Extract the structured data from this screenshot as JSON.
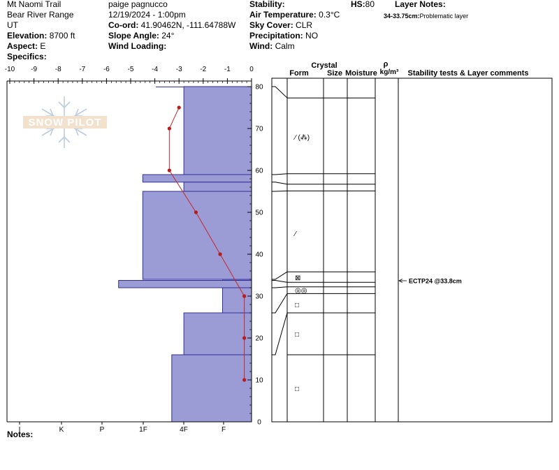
{
  "header": {
    "col1": {
      "location": "Mt Naomi Trail",
      "range": "Bear River Range",
      "state": "UT",
      "elevation_label": "Elevation:",
      "elevation_value": "8700 ft",
      "aspect_label": "Aspect:",
      "aspect_value": "E",
      "specifics_label": "Specifics:"
    },
    "col2": {
      "observer": "paige pagnucco",
      "datetime": "12/19/2024 - 1:00pm",
      "coord_label": "Co-ord:",
      "coord_value": "41.90462N, -111.64788W",
      "slope_label": "Slope Angle:",
      "slope_value": "24°",
      "wind_loading_label": "Wind Loading:"
    },
    "col3": {
      "stability_label": "Stability:",
      "air_temp_label": "Air Temperature:",
      "air_temp_value": "0.3°C",
      "sky_label": "Sky Cover:",
      "sky_value": "CLR",
      "precip_label": "Precipitation:",
      "precip_value": "NO",
      "wind_label": "Wind:",
      "wind_value": "Calm"
    },
    "hs_label": "HS:",
    "hs_value": "80",
    "layer_notes_label": "Layer Notes:",
    "layer_note_range": "34-33.75cm:",
    "layer_note_text": "Problematic layer"
  },
  "watermark": "SNOW PILOT",
  "notes_label": "Notes:",
  "grid_headers": {
    "crystal": "Crystal",
    "form": "Form",
    "size": "Size",
    "moisture": "Moisture",
    "rho": "ρ",
    "density_unit": "kg/m³",
    "stability": "Stability tests & Layer comments"
  },
  "test_result": "ECTP24 @33.8cm",
  "grain_symbols": [
    {
      "height": 68,
      "symbol": "⁄ (⁂)"
    },
    {
      "height": 45,
      "symbol": "⁄"
    },
    {
      "height": 34.5,
      "symbol": "⊠"
    },
    {
      "height": 31.5,
      "symbol": "◎◎"
    },
    {
      "height": 28,
      "symbol": "□"
    },
    {
      "height": 21,
      "symbol": "□"
    },
    {
      "height": 8,
      "symbol": "□"
    }
  ],
  "chart_data": {
    "type": "snow_profile",
    "temperature_axis": {
      "ticks": [
        "-10",
        "-9",
        "-8",
        "-7",
        "-6",
        "-5",
        "-4",
        "-3",
        "-2",
        "-1",
        "0"
      ],
      "range": [
        -10,
        0
      ]
    },
    "hardness_axis": {
      "ticks": [
        "I",
        "K",
        "P",
        "1F",
        "4F",
        "F"
      ]
    },
    "height_axis": {
      "ticks": [
        "0",
        "10",
        "20",
        "30",
        "40",
        "50",
        "60",
        "70",
        "80"
      ],
      "range": [
        0,
        80
      ]
    },
    "temperature_profile": [
      {
        "height": 75,
        "temp": -3.0
      },
      {
        "height": 70,
        "temp": -3.4
      },
      {
        "height": 60,
        "temp": -3.4
      },
      {
        "height": 50,
        "temp": -2.3
      },
      {
        "height": 40,
        "temp": -1.3
      },
      {
        "height": 30,
        "temp": -0.3
      },
      {
        "height": 20,
        "temp": -0.3
      },
      {
        "height": 10,
        "temp": -0.3
      }
    ],
    "hardness_layers": [
      {
        "top": 80,
        "bottom": 59,
        "hardness": -2.8
      },
      {
        "top": 59,
        "bottom": 57.2,
        "hardness": -4.5
      },
      {
        "top": 57.2,
        "bottom": 55,
        "hardness": -2.8
      },
      {
        "top": 55,
        "bottom": 34,
        "hardness": -4.5
      },
      {
        "top": 34,
        "bottom": 33.75,
        "hardness": -1.2
      },
      {
        "top": 33.75,
        "bottom": 32,
        "hardness": -5.5
      },
      {
        "top": 32,
        "bottom": 26,
        "hardness": -1.2
      },
      {
        "top": 26,
        "bottom": 16,
        "hardness": -2.8
      },
      {
        "top": 16,
        "bottom": 0,
        "hardness": -3.3
      }
    ],
    "layer_boundaries": [
      80,
      59,
      57.2,
      55,
      34,
      33.75,
      32,
      26,
      16
    ],
    "grid_lines": [
      77.3,
      59.2,
      56.7,
      55.1,
      35.8,
      33.3,
      32.2,
      30.6,
      26,
      16
    ]
  }
}
